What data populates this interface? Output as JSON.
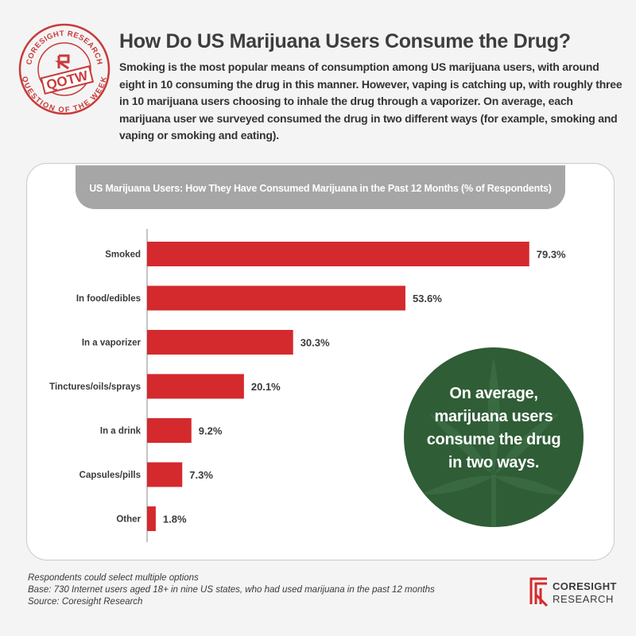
{
  "header": {
    "title": "How Do US Marijuana Users Consume the Drug?",
    "intro": "Smoking is the most popular means of consumption among US marijuana users, with around eight in 10 consuming the drug in this manner. However, vaping is catching up, with roughly three in 10 marijuana users choosing to inhale the drug through a vaporizer. On average, each marijuana user we surveyed consumed the drug in two different ways (for example, smoking and vaping or smoking and eating)."
  },
  "stamp": {
    "top_text": "CORESIGHT RESEARCH",
    "center_text": "QOTW",
    "bottom_text": "QUESTION OF THE WEEK"
  },
  "chart_data": {
    "type": "bar",
    "orientation": "horizontal",
    "title": "US Marijuana Users: How They Have Consumed Marijuana in the Past 12 Months (% of Respondents)",
    "categories": [
      "Smoked",
      "In food/edibles",
      "In a vaporizer",
      "Tinctures/oils/sprays",
      "In a drink",
      "Capsules/pills",
      "Other"
    ],
    "values": [
      79.3,
      53.6,
      30.3,
      20.1,
      9.2,
      7.3,
      1.8
    ],
    "value_labels": [
      "79.3%",
      "53.6%",
      "30.3%",
      "20.1%",
      "9.2%",
      "7.3%",
      "1.8%"
    ],
    "xlim": [
      0,
      80
    ],
    "grid": false,
    "bar_color": "#d42a2e"
  },
  "callout": {
    "text_lines": [
      "On average,",
      "marijuana users",
      "consume the drug",
      "in two ways."
    ],
    "bg_color": "#2f5d36"
  },
  "notes": [
    "Respondents could select multiple options",
    "Base: 730 Internet users aged 18+ in nine US states, who had used marijuana in the past 12 months",
    "Source: Coresight Research"
  ],
  "logo": {
    "line1": "CORESIGHT",
    "line2": "RESEARCH"
  },
  "colors": {
    "accent": "#d42a2e",
    "stamp": "#c93a3a",
    "header_bar": "#a6a6a6"
  }
}
